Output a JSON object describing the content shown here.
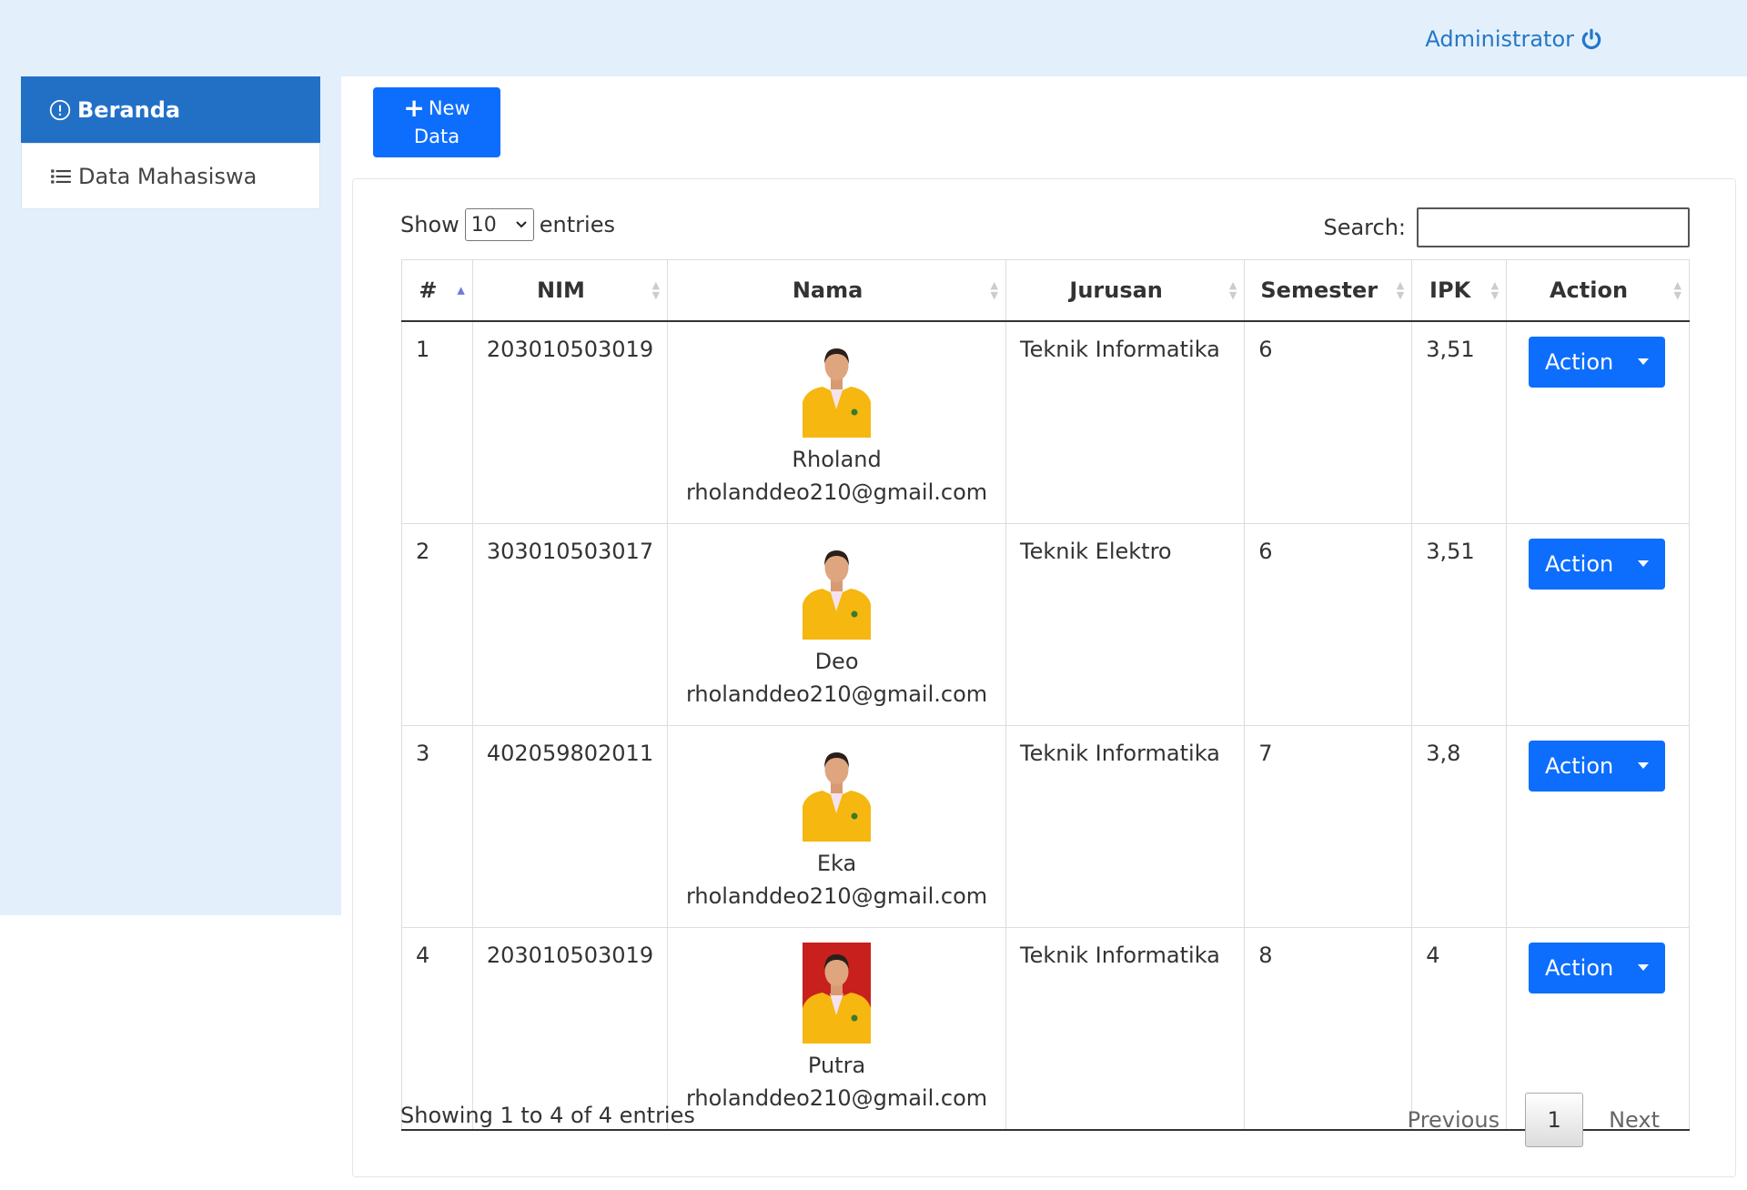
{
  "header": {
    "user_label": "Administrator"
  },
  "sidebar": {
    "items": [
      {
        "label": "Beranda",
        "icon": "info-circle-icon"
      },
      {
        "label": "Data Mahasiswa",
        "icon": "list-icon"
      }
    ]
  },
  "toolbar": {
    "new_line1": "New",
    "new_line2": "Data"
  },
  "table_controls": {
    "show_label": "Show",
    "page_length": "10",
    "entries_label": "entries",
    "search_label": "Search:",
    "search_value": ""
  },
  "table": {
    "columns": [
      "#",
      "NIM",
      "Nama",
      "Jurusan",
      "Semester",
      "IPK",
      "Action"
    ],
    "rows": [
      {
        "no": "1",
        "nim": "203010503019",
        "nama": "Rholand",
        "email": "rholanddeo210@gmail.com",
        "jurusan": "Teknik Informatika",
        "semester": "6",
        "ipk": "3,51",
        "action": "Action",
        "photo_bg": "#ffffff"
      },
      {
        "no": "2",
        "nim": "303010503017",
        "nama": "Deo",
        "email": "rholanddeo210@gmail.com",
        "jurusan": "Teknik Elektro",
        "semester": "6",
        "ipk": "3,51",
        "action": "Action",
        "photo_bg": "#ffffff"
      },
      {
        "no": "3",
        "nim": "402059802011",
        "nama": "Eka",
        "email": "rholanddeo210@gmail.com",
        "jurusan": "Teknik Informatika",
        "semester": "7",
        "ipk": "3,8",
        "action": "Action",
        "photo_bg": "#ffffff"
      },
      {
        "no": "4",
        "nim": "203010503019",
        "nama": "Putra",
        "email": "rholanddeo210@gmail.com",
        "jurusan": "Teknik Informatika",
        "semester": "8",
        "ipk": "4",
        "action": "Action",
        "photo_bg": "#c8201c"
      }
    ]
  },
  "footer": {
    "info": "Showing 1 to 4 of 4 entries",
    "previous": "Previous",
    "current_page": "1",
    "next": "Next"
  },
  "colors": {
    "primary": "#0d6efd",
    "sidebar_active": "#2270c6",
    "header_bg": "#e3f0fb",
    "admin_text": "#2577c8"
  }
}
